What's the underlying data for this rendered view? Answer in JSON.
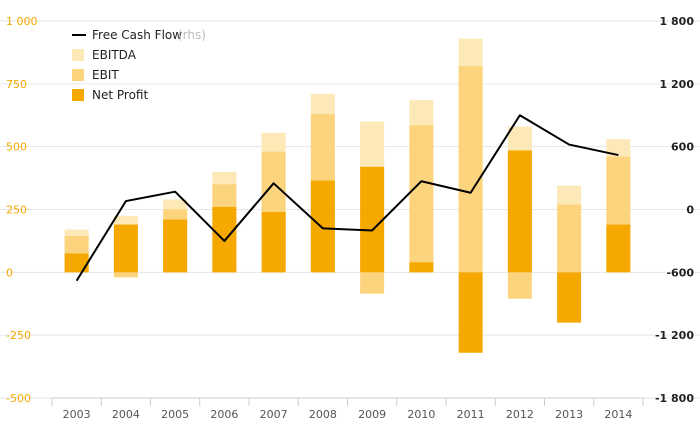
{
  "chart_data": {
    "type": "bar",
    "categories": [
      "2003",
      "2004",
      "2005",
      "2006",
      "2007",
      "2008",
      "2009",
      "2010",
      "2011",
      "2012",
      "2013",
      "2014"
    ],
    "series": [
      {
        "name": "EBITDA",
        "type": "bar",
        "color": "#fde8b8",
        "values": [
          170,
          225,
          290,
          400,
          555,
          710,
          600,
          685,
          930,
          580,
          345,
          530
        ]
      },
      {
        "name": "EBIT",
        "type": "bar",
        "color": "#fcd47e",
        "values": [
          145,
          -20,
          250,
          350,
          480,
          630,
          -85,
          585,
          820,
          -105,
          270,
          460
        ]
      },
      {
        "name": "Net Profit",
        "type": "bar",
        "color": "#f5a800",
        "values": [
          75,
          190,
          210,
          260,
          240,
          365,
          420,
          40,
          -320,
          485,
          -200,
          190
        ]
      },
      {
        "name": "Free Cash Flow",
        "name_note": "(rhs)",
        "type": "line",
        "axis": "right",
        "color": "#000000",
        "values": [
          -680,
          80,
          170,
          -300,
          250,
          -180,
          -200,
          270,
          160,
          900,
          620,
          520
        ]
      }
    ],
    "yleft": {
      "ylim": [
        -500,
        1000
      ],
      "ticks": [
        -500,
        -250,
        0,
        250,
        500,
        750,
        1000
      ],
      "tick_labels": [
        "-500",
        "-250",
        "0",
        "250",
        "500",
        "750",
        "1 000"
      ]
    },
    "yright": {
      "ylim": [
        -1800,
        1800
      ],
      "ticks": [
        -1800,
        -1200,
        -600,
        0,
        600,
        1200,
        1800
      ],
      "tick_labels": [
        "-1 800",
        "-1 200",
        "-600",
        "0",
        "600",
        "1 200",
        "1 800"
      ]
    },
    "grid": true,
    "legend_position": "top-left"
  }
}
